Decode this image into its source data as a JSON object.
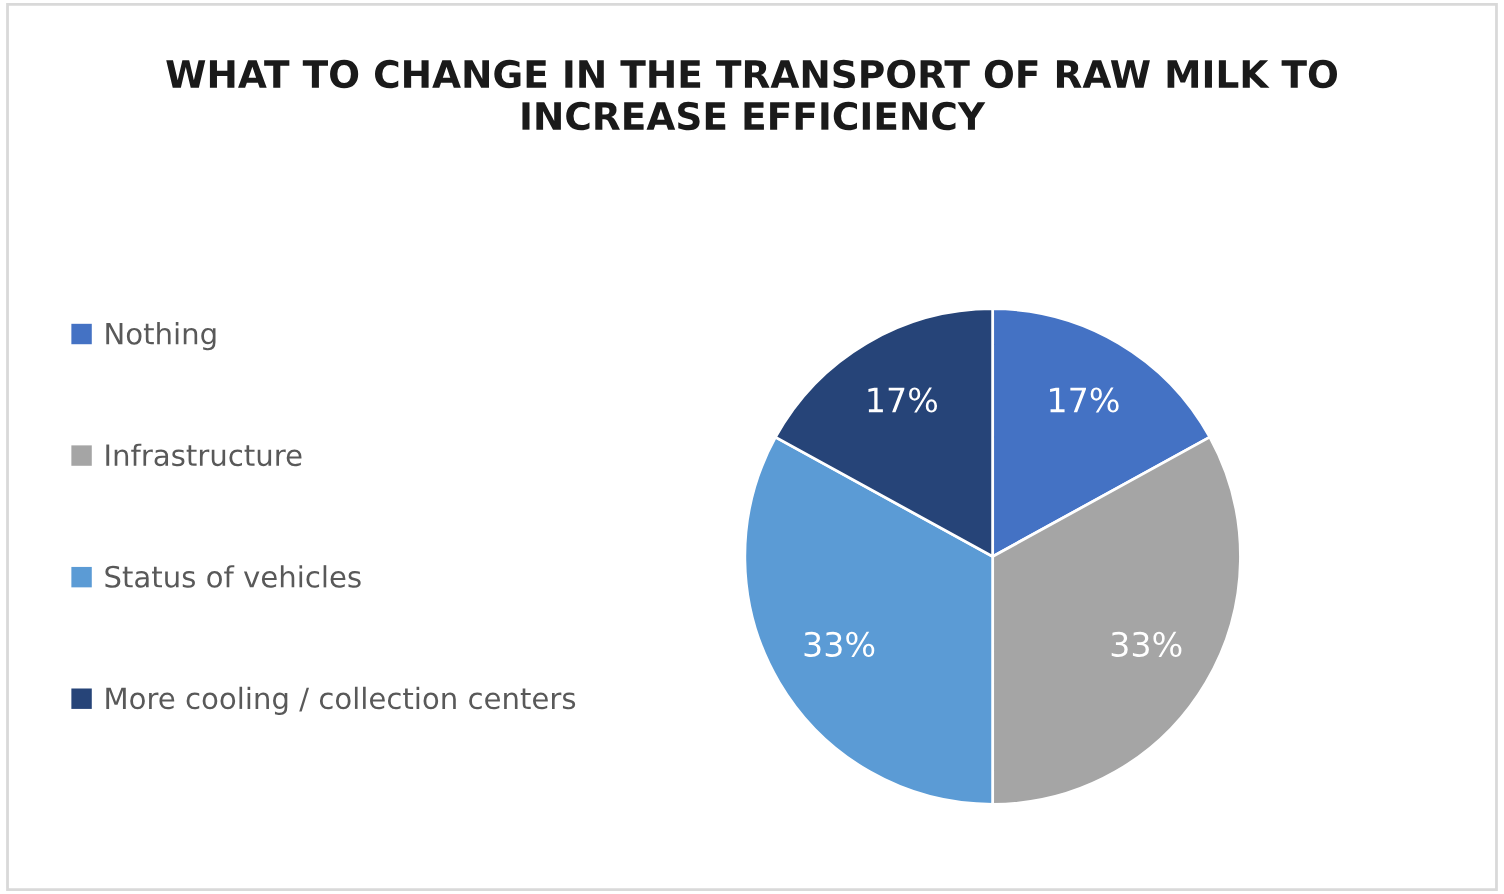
{
  "chart_data": {
    "type": "pie",
    "title": "WHAT TO CHANGE IN THE TRANSPORT OF RAW MILK TO INCREASE EFFICIENCY",
    "categories": [
      "Nothing",
      "Infrastructure",
      "Status of vehicles",
      "More cooling / collection centers"
    ],
    "values": [
      17,
      33,
      33,
      17
    ],
    "value_labels": [
      "17%",
      "33%",
      "33%",
      "17%"
    ],
    "colors": [
      "#4472c4",
      "#a5a5a5",
      "#5b9bd5",
      "#264478"
    ],
    "legend": "left"
  }
}
